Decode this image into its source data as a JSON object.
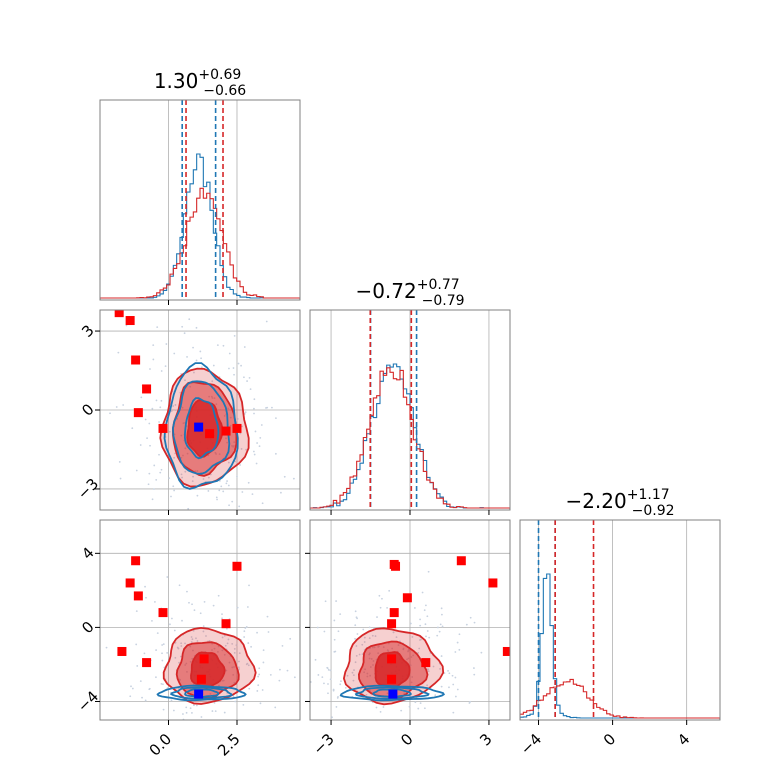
{
  "chart_data": {
    "type": "corner",
    "colors": {
      "primary": "#d62728",
      "secondary": "#1f77b4",
      "truth": "#ff0000",
      "best": "#0000ff",
      "grid": "#b0b0b0",
      "scatter": "#c8d2e0"
    },
    "parameters": [
      {
        "index": 0,
        "range": [
          -2.5,
          4.8
        ],
        "ticks": [
          0.0,
          2.5
        ],
        "tick_labels": [
          "0.0",
          "2.5"
        ],
        "title": {
          "main": "1.30",
          "plus": "+0.69",
          "minus": "−0.66"
        }
      },
      {
        "index": 1,
        "range": [
          -3.8,
          3.8
        ],
        "ticks": [
          -3,
          0,
          3
        ],
        "tick_labels": [
          "−3",
          "0",
          "3"
        ],
        "title": {
          "main": "−0.72",
          "plus": "+0.77",
          "minus": "−0.79"
        }
      },
      {
        "index": 2,
        "range": [
          -5.0,
          5.8
        ],
        "ticks": [
          -4,
          0,
          4
        ],
        "tick_labels": [
          "−4",
          "0",
          "4"
        ],
        "title": {
          "main": "−2.20",
          "plus": "+1.17",
          "minus": "−0.92"
        }
      }
    ],
    "marginals": [
      {
        "param": 0,
        "secondary_quantiles": [
          0.5,
          1.72
        ],
        "primary_quantiles": [
          0.64,
          1.99
        ],
        "secondary_hist": {
          "mean": 1.1,
          "sd": 0.5
        },
        "primary_hist": {
          "mean": 1.3,
          "sd": 0.65
        }
      },
      {
        "param": 1,
        "secondary_quantiles": [
          -1.5,
          0.25
        ],
        "primary_quantiles": [
          -1.51,
          0.05
        ],
        "secondary_hist": {
          "mean": -0.65,
          "sd": 0.8
        },
        "primary_hist": {
          "mean": -0.72,
          "sd": 0.8
        }
      },
      {
        "param": 2,
        "secondary_quantiles": [
          -4.0,
          -3.1
        ],
        "primary_quantiles": [
          -3.1,
          -1.03
        ],
        "secondary_hist": {
          "mean": -3.55,
          "sd": 0.25
        },
        "primary_hist": {
          "mean": -2.5,
          "sd": 1.1
        }
      }
    ],
    "panels": [
      {
        "x_param": 0,
        "y_param": 1,
        "primary_contours": [
          {
            "cx": 1.3,
            "cy": -0.7,
            "rx": 0.62,
            "ry": 1.05
          },
          {
            "cx": 1.3,
            "cy": -0.7,
            "rx": 1.15,
            "ry": 1.75
          },
          {
            "cx": 1.3,
            "cy": -0.7,
            "rx": 1.55,
            "ry": 2.2
          }
        ],
        "secondary_contours": [
          {
            "cx": 1.2,
            "cy": -0.7,
            "rx": 0.6,
            "ry": 1.1
          },
          {
            "cx": 1.2,
            "cy": -0.7,
            "rx": 1.0,
            "ry": 1.75
          },
          {
            "cx": 1.2,
            "cy": -0.7,
            "rx": 1.3,
            "ry": 2.3
          }
        ],
        "truth_points": [
          [
            -1.8,
            3.7
          ],
          [
            -1.4,
            3.4
          ],
          [
            -1.2,
            1.9
          ],
          [
            -0.8,
            0.8
          ],
          [
            -1.1,
            -0.1
          ],
          [
            -0.2,
            -0.7
          ],
          [
            1.5,
            -0.9
          ],
          [
            2.1,
            -0.8
          ],
          [
            2.5,
            -0.7
          ]
        ],
        "best_point": [
          1.1,
          -0.65
        ]
      },
      {
        "x_param": 0,
        "y_param": 2,
        "primary_contours": [
          {
            "cx": 1.4,
            "cy": -2.3,
            "rx": 0.6,
            "ry": 0.95
          },
          {
            "cx": 1.4,
            "cy": -2.3,
            "rx": 1.1,
            "ry": 1.5
          },
          {
            "cx": 1.45,
            "cy": -2.1,
            "rx": 1.6,
            "ry": 2.0
          }
        ],
        "secondary_contours": [
          {
            "cx": 1.2,
            "cy": -3.55,
            "rx": 0.6,
            "ry": 0.2
          },
          {
            "cx": 1.2,
            "cy": -3.55,
            "rx": 1.05,
            "ry": 0.3
          },
          {
            "cx": 1.2,
            "cy": -3.55,
            "rx": 1.55,
            "ry": 0.38
          }
        ],
        "truth_points": [
          [
            -1.7,
            -1.3
          ],
          [
            -1.2,
            3.6
          ],
          [
            -1.4,
            2.4
          ],
          [
            -1.1,
            1.7
          ],
          [
            -0.2,
            0.8
          ],
          [
            -0.8,
            -1.9
          ],
          [
            2.1,
            0.2
          ],
          [
            2.5,
            3.3
          ],
          [
            1.3,
            -1.7
          ],
          [
            1.2,
            -2.8
          ]
        ],
        "best_point": [
          1.1,
          -3.6
        ]
      },
      {
        "x_param": 1,
        "y_param": 2,
        "primary_contours": [
          {
            "cx": -0.7,
            "cy": -2.3,
            "rx": 0.65,
            "ry": 0.95
          },
          {
            "cx": -0.7,
            "cy": -2.3,
            "rx": 1.25,
            "ry": 1.5
          },
          {
            "cx": -0.7,
            "cy": -2.1,
            "rx": 1.8,
            "ry": 2.0
          }
        ],
        "secondary_contours": [
          {
            "cx": -0.7,
            "cy": -3.55,
            "rx": 0.7,
            "ry": 0.2
          },
          {
            "cx": -0.7,
            "cy": -3.55,
            "rx": 1.3,
            "ry": 0.3
          },
          {
            "cx": -0.7,
            "cy": -3.55,
            "rx": 1.9,
            "ry": 0.38
          }
        ],
        "truth_points": [
          [
            -0.6,
            3.4
          ],
          [
            -0.55,
            3.3
          ],
          [
            -0.1,
            1.6
          ],
          [
            -0.6,
            0.8
          ],
          [
            -0.7,
            0.2
          ],
          [
            -0.7,
            -1.7
          ],
          [
            -0.7,
            -2.8
          ],
          [
            0.6,
            -1.9
          ],
          [
            1.95,
            3.6
          ],
          [
            3.15,
            2.4
          ],
          [
            3.7,
            -1.3
          ]
        ],
        "best_point": [
          -0.65,
          -3.6
        ]
      }
    ]
  }
}
